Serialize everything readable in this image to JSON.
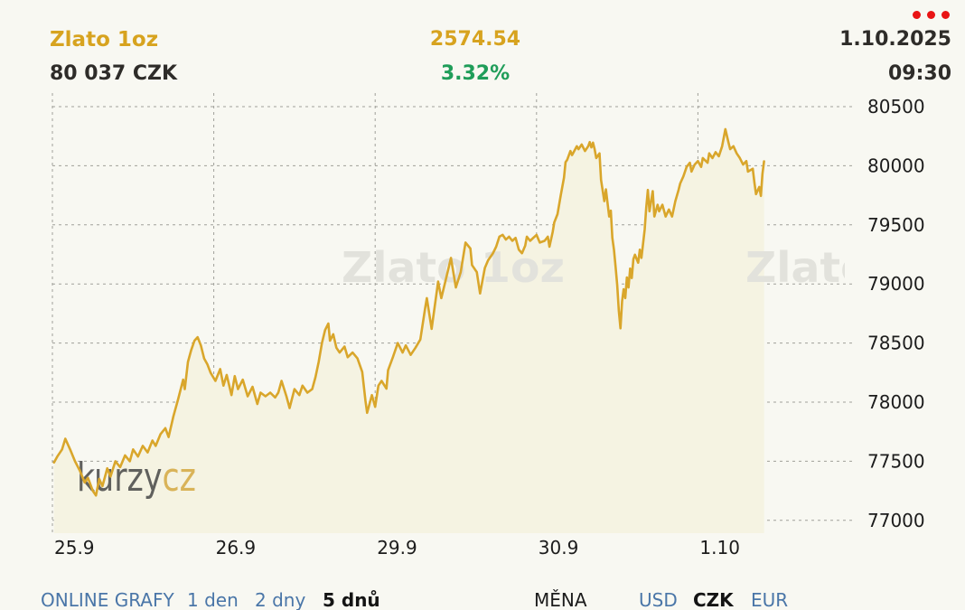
{
  "header": {
    "instrument": "Zlato 1oz",
    "price_czk": "80 037 CZK",
    "price_usd": "2574.54",
    "change_pct": "3.32%",
    "date": "1.10.2025",
    "time": "09:30"
  },
  "watermark": {
    "text": "Zlato 1oz",
    "logo_dark": "kurzy",
    "logo_gold": "cz"
  },
  "toolbar": {
    "online_grafy": "ONLINE GRAFY",
    "ranges": [
      {
        "label": "1 den",
        "active": false
      },
      {
        "label": "2 dny",
        "active": false
      },
      {
        "label": "5 dnů",
        "active": true
      }
    ],
    "mena_label": "MĚNA",
    "currencies": [
      {
        "label": "USD",
        "active": false
      },
      {
        "label": "CZK",
        "active": true
      },
      {
        "label": "EUR",
        "active": false
      }
    ]
  },
  "colors": {
    "gold_text": "#d7a31f",
    "green_change": "#1f9d59",
    "dark_text": "#2e2c29",
    "red_menu_dots": "#e91414",
    "link_blue": "#4a76a8",
    "line": "#d9a62b",
    "area_fill": "#f5f3e2",
    "background": "#f8f8f2",
    "grid": "#a0a099",
    "watermark": "#e2e2dc",
    "logo_dark": "#454545",
    "logo_gold": "#d4a73f"
  },
  "chart_data": {
    "type": "area",
    "title": "Zlato 1oz — 5 dnů (CZK)",
    "x_tick_labels": [
      "25.9",
      "26.9",
      "29.9",
      "30.9",
      "1.10"
    ],
    "y_ticks": [
      80500,
      80000,
      79500,
      79000,
      78500,
      78000,
      77500,
      77000
    ],
    "ylim": [
      76890,
      80615
    ],
    "xlim_days": [
      0,
      4.91
    ],
    "grid": true,
    "legend": false,
    "last_value": 80037,
    "last_time": "1.10.2025 09:30",
    "series": [
      {
        "name": "Zlato 1oz CZK",
        "points": [
          [
            0.01,
            77490
          ],
          [
            0.03,
            77540
          ],
          [
            0.06,
            77600
          ],
          [
            0.08,
            77690
          ],
          [
            0.11,
            77600
          ],
          [
            0.14,
            77500
          ],
          [
            0.17,
            77420
          ],
          [
            0.2,
            77320
          ],
          [
            0.22,
            77360
          ],
          [
            0.25,
            77250
          ],
          [
            0.27,
            77210
          ],
          [
            0.29,
            77350
          ],
          [
            0.31,
            77290
          ],
          [
            0.34,
            77440
          ],
          [
            0.36,
            77370
          ],
          [
            0.39,
            77500
          ],
          [
            0.42,
            77450
          ],
          [
            0.45,
            77550
          ],
          [
            0.48,
            77500
          ],
          [
            0.5,
            77600
          ],
          [
            0.53,
            77540
          ],
          [
            0.56,
            77630
          ],
          [
            0.59,
            77575
          ],
          [
            0.62,
            77675
          ],
          [
            0.64,
            77630
          ],
          [
            0.67,
            77730
          ],
          [
            0.7,
            77780
          ],
          [
            0.72,
            77705
          ],
          [
            0.75,
            77880
          ],
          [
            0.78,
            78030
          ],
          [
            0.81,
            78190
          ],
          [
            0.82,
            78110
          ],
          [
            0.84,
            78340
          ],
          [
            0.86,
            78440
          ],
          [
            0.88,
            78520
          ],
          [
            0.9,
            78550
          ],
          [
            0.92,
            78480
          ],
          [
            0.94,
            78370
          ],
          [
            0.96,
            78320
          ],
          [
            0.98,
            78250
          ],
          [
            1.01,
            78180
          ],
          [
            1.04,
            78280
          ],
          [
            1.06,
            78140
          ],
          [
            1.08,
            78230
          ],
          [
            1.11,
            78060
          ],
          [
            1.13,
            78220
          ],
          [
            1.15,
            78110
          ],
          [
            1.18,
            78190
          ],
          [
            1.21,
            78050
          ],
          [
            1.24,
            78130
          ],
          [
            1.27,
            77985
          ],
          [
            1.29,
            78080
          ],
          [
            1.32,
            78050
          ],
          [
            1.35,
            78080
          ],
          [
            1.38,
            78040
          ],
          [
            1.4,
            78080
          ],
          [
            1.42,
            78180
          ],
          [
            1.45,
            78050
          ],
          [
            1.47,
            77950
          ],
          [
            1.5,
            78110
          ],
          [
            1.53,
            78060
          ],
          [
            1.55,
            78140
          ],
          [
            1.58,
            78080
          ],
          [
            1.61,
            78110
          ],
          [
            1.63,
            78210
          ],
          [
            1.65,
            78340
          ],
          [
            1.67,
            78500
          ],
          [
            1.69,
            78610
          ],
          [
            1.71,
            78665
          ],
          [
            1.72,
            78520
          ],
          [
            1.74,
            78575
          ],
          [
            1.76,
            78460
          ],
          [
            1.78,
            78420
          ],
          [
            1.81,
            78470
          ],
          [
            1.83,
            78380
          ],
          [
            1.86,
            78420
          ],
          [
            1.89,
            78370
          ],
          [
            1.92,
            78255
          ],
          [
            1.94,
            78010
          ],
          [
            1.95,
            77910
          ],
          [
            1.98,
            78060
          ],
          [
            2.0,
            77960
          ],
          [
            2.02,
            78140
          ],
          [
            2.04,
            78180
          ],
          [
            2.07,
            78115
          ],
          [
            2.08,
            78270
          ],
          [
            2.11,
            78380
          ],
          [
            2.14,
            78500
          ],
          [
            2.17,
            78420
          ],
          [
            2.19,
            78480
          ],
          [
            2.22,
            78400
          ],
          [
            2.25,
            78460
          ],
          [
            2.28,
            78530
          ],
          [
            2.31,
            78800
          ],
          [
            2.32,
            78880
          ],
          [
            2.35,
            78620
          ],
          [
            2.39,
            79020
          ],
          [
            2.41,
            78880
          ],
          [
            2.44,
            79050
          ],
          [
            2.47,
            79220
          ],
          [
            2.5,
            78970
          ],
          [
            2.53,
            79100
          ],
          [
            2.56,
            79350
          ],
          [
            2.59,
            79300
          ],
          [
            2.6,
            79160
          ],
          [
            2.63,
            79100
          ],
          [
            2.65,
            78920
          ],
          [
            2.68,
            79135
          ],
          [
            2.7,
            79200
          ],
          [
            2.73,
            79260
          ],
          [
            2.75,
            79315
          ],
          [
            2.77,
            79400
          ],
          [
            2.79,
            79415
          ],
          [
            2.81,
            79375
          ],
          [
            2.83,
            79400
          ],
          [
            2.85,
            79365
          ],
          [
            2.87,
            79390
          ],
          [
            2.89,
            79290
          ],
          [
            2.91,
            79260
          ],
          [
            2.93,
            79325
          ],
          [
            2.94,
            79400
          ],
          [
            2.96,
            79365
          ],
          [
            2.98,
            79390
          ],
          [
            3.0,
            79415
          ],
          [
            3.02,
            79350
          ],
          [
            3.05,
            79365
          ],
          [
            3.07,
            79400
          ],
          [
            3.08,
            79315
          ],
          [
            3.1,
            79440
          ],
          [
            3.11,
            79520
          ],
          [
            3.13,
            79590
          ],
          [
            3.15,
            79750
          ],
          [
            3.17,
            79900
          ],
          [
            3.18,
            80030
          ],
          [
            3.19,
            80050
          ],
          [
            3.21,
            80125
          ],
          [
            3.22,
            80090
          ],
          [
            3.25,
            80165
          ],
          [
            3.26,
            80140
          ],
          [
            3.28,
            80180
          ],
          [
            3.3,
            80125
          ],
          [
            3.32,
            80165
          ],
          [
            3.33,
            80200
          ],
          [
            3.34,
            80155
          ],
          [
            3.35,
            80195
          ],
          [
            3.36,
            80140
          ],
          [
            3.37,
            80065
          ],
          [
            3.39,
            80105
          ],
          [
            3.4,
            79880
          ],
          [
            3.42,
            79700
          ],
          [
            3.43,
            79800
          ],
          [
            3.45,
            79570
          ],
          [
            3.46,
            79620
          ],
          [
            3.47,
            79390
          ],
          [
            3.48,
            79290
          ],
          [
            3.49,
            79145
          ],
          [
            3.5,
            78990
          ],
          [
            3.51,
            78770
          ],
          [
            3.52,
            78625
          ],
          [
            3.53,
            78855
          ],
          [
            3.54,
            78955
          ],
          [
            3.55,
            78880
          ],
          [
            3.56,
            79055
          ],
          [
            3.57,
            78970
          ],
          [
            3.58,
            79130
          ],
          [
            3.59,
            79050
          ],
          [
            3.6,
            79210
          ],
          [
            3.61,
            79247
          ],
          [
            3.63,
            79180
          ],
          [
            3.64,
            79290
          ],
          [
            3.65,
            79220
          ],
          [
            3.66,
            79340
          ],
          [
            3.67,
            79460
          ],
          [
            3.68,
            79645
          ],
          [
            3.69,
            79795
          ],
          [
            3.7,
            79615
          ],
          [
            3.72,
            79785
          ],
          [
            3.73,
            79570
          ],
          [
            3.75,
            79670
          ],
          [
            3.76,
            79615
          ],
          [
            3.78,
            79670
          ],
          [
            3.8,
            79570
          ],
          [
            3.82,
            79630
          ],
          [
            3.84,
            79570
          ],
          [
            3.86,
            79700
          ],
          [
            3.88,
            79795
          ],
          [
            3.89,
            79850
          ],
          [
            3.91,
            79910
          ],
          [
            3.93,
            79990
          ],
          [
            3.95,
            80025
          ],
          [
            3.96,
            79950
          ],
          [
            3.98,
            80010
          ],
          [
            4.0,
            80040
          ],
          [
            4.02,
            79990
          ],
          [
            4.03,
            80065
          ],
          [
            4.06,
            80025
          ],
          [
            4.07,
            80105
          ],
          [
            4.09,
            80065
          ],
          [
            4.11,
            80115
          ],
          [
            4.13,
            80080
          ],
          [
            4.15,
            80165
          ],
          [
            4.17,
            80310
          ],
          [
            4.19,
            80195
          ],
          [
            4.2,
            80140
          ],
          [
            4.22,
            80165
          ],
          [
            4.24,
            80105
          ],
          [
            4.26,
            80065
          ],
          [
            4.28,
            80010
          ],
          [
            4.3,
            80040
          ],
          [
            4.31,
            79950
          ],
          [
            4.34,
            79975
          ],
          [
            4.35,
            79860
          ],
          [
            4.36,
            79760
          ],
          [
            4.38,
            79820
          ],
          [
            4.39,
            79745
          ],
          [
            4.4,
            79930
          ],
          [
            4.41,
            80037
          ]
        ]
      }
    ]
  }
}
